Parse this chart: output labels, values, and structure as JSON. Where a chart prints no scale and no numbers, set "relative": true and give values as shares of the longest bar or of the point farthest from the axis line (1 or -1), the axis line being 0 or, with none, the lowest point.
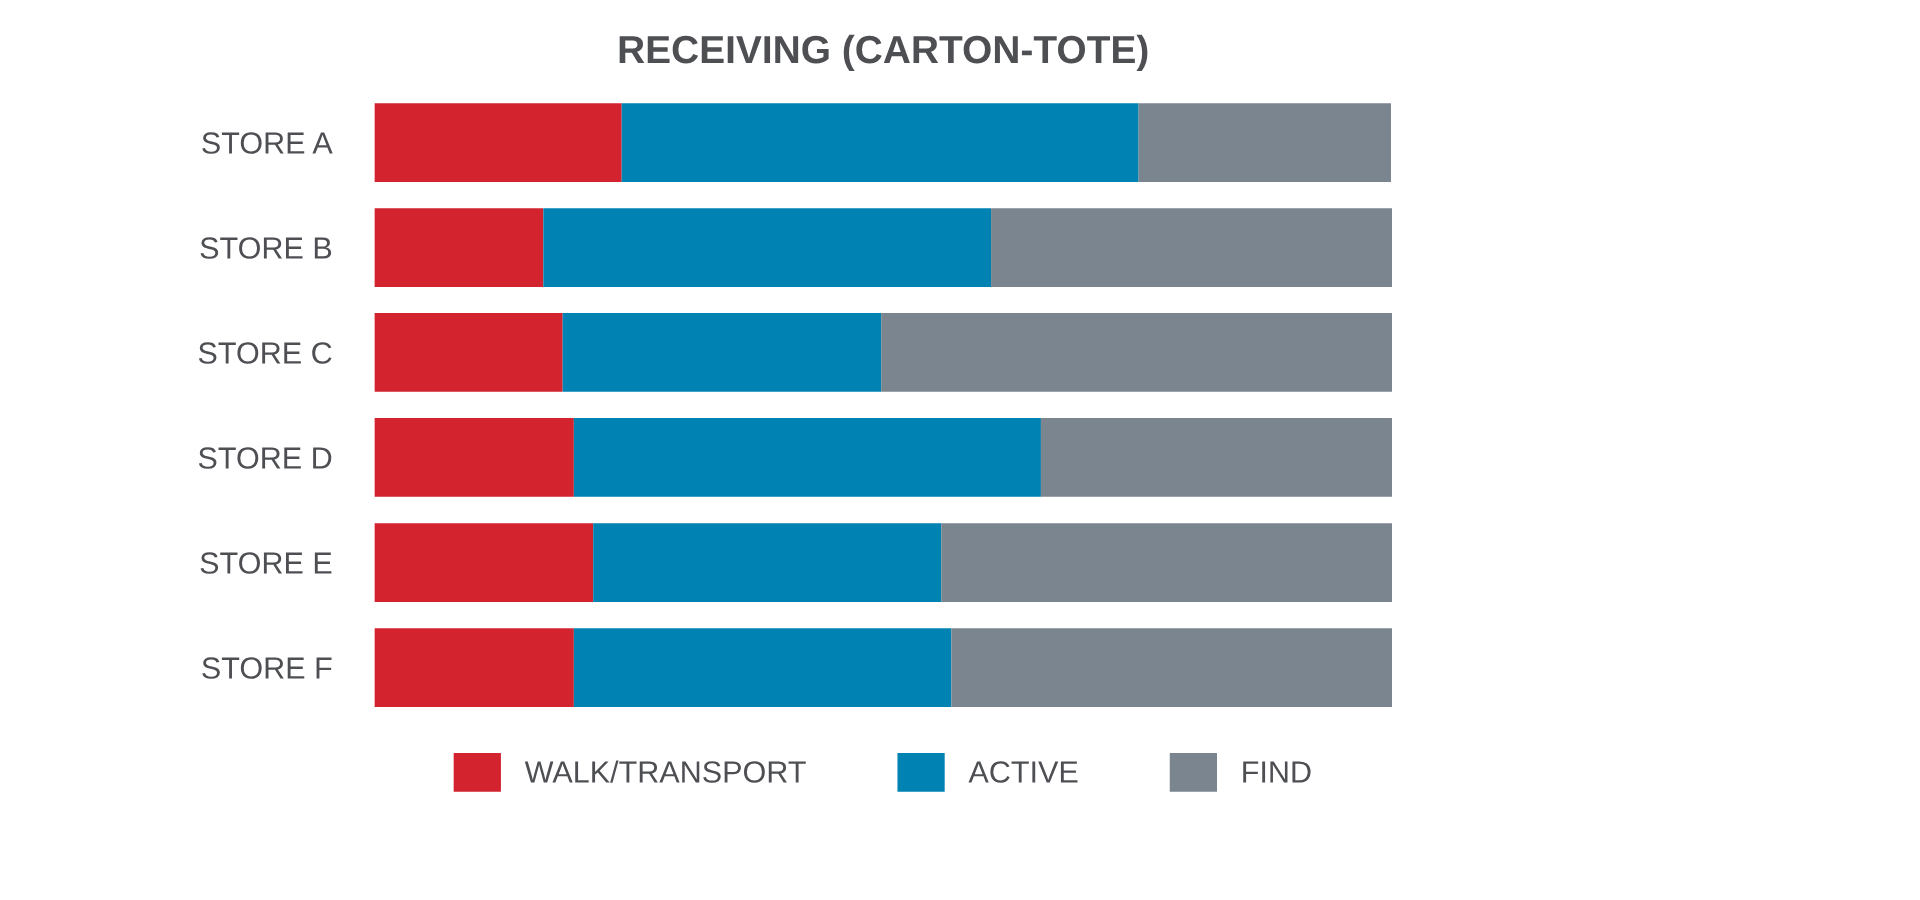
{
  "chart_data": {
    "type": "bar",
    "orientation": "horizontal",
    "stacked": true,
    "relative": true,
    "title": "RECEIVING (CARTON-TOTE)",
    "categories": [
      "STORE A",
      "STORE B",
      "STORE C",
      "STORE D",
      "STORE E",
      "STORE F"
    ],
    "series": [
      {
        "name": "WALK/TRANSPORT",
        "color": "#d2232e",
        "values": [
          0.243,
          0.166,
          0.185,
          0.196,
          0.215,
          0.196
        ]
      },
      {
        "name": "ACTIVE",
        "color": "#0082b2",
        "values": [
          0.508,
          0.44,
          0.313,
          0.459,
          0.342,
          0.371
        ]
      },
      {
        "name": "FIND",
        "color": "#7b858f",
        "values": [
          0.248,
          0.394,
          0.502,
          0.345,
          0.443,
          0.433
        ]
      }
    ],
    "legend": "bottom",
    "grid": false
  }
}
